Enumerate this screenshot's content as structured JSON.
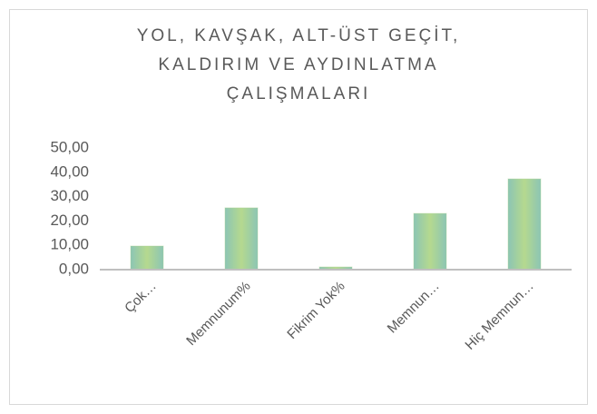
{
  "chart_data": {
    "type": "bar",
    "title": [
      "YOL, KAVŞAK, ALT-ÜST GEÇİT,",
      "KALDIRIM VE AYDINLATMA",
      "ÇALIŞMALARI"
    ],
    "categories": [
      "Çok…",
      "Memnunum%",
      "Fikrim Yok%",
      "Memnun…",
      "Hiç Memnun…"
    ],
    "values": [
      9.7,
      25.4,
      1.1,
      23.1,
      37.3
    ],
    "color": "#a9d18e",
    "ylim": [
      0,
      50
    ],
    "yticks": [
      {
        "value": 0,
        "label": "0,00"
      },
      {
        "value": 10,
        "label": "10,00"
      },
      {
        "value": 20,
        "label": "20,00"
      },
      {
        "value": 30,
        "label": "30,00"
      },
      {
        "value": 40,
        "label": "40,00"
      },
      {
        "value": 50,
        "label": "50,00"
      }
    ],
    "grid": false
  }
}
